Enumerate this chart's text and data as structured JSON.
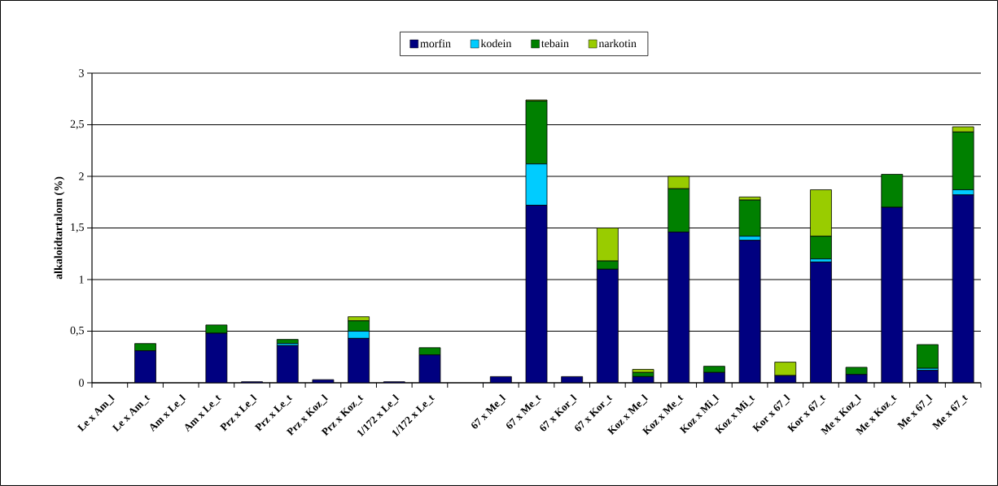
{
  "chart_data": {
    "type": "bar",
    "stacked": true,
    "ylabel": "alkaloidtartalom (%)",
    "categories": [
      "Le x Am_l",
      "Le x Am_t",
      "Am x Le_l",
      "Am x Le_t",
      "Prz x Le_l",
      "Prz x Le_t",
      "Prz x Koz_l",
      "Prz x Koz_t",
      "1/172 x Le_l",
      "1/172 x Le_t",
      null,
      "67 x Me_l",
      "67 x Me_t",
      "67 x Kor_l",
      "67 x Kor_t",
      "Koz x Me_l",
      "Koz x Me_t",
      "Koz x Mi_l",
      "Koz x Mi_t",
      "Kor x 67_l",
      "Kor x 67_t",
      "Me x Koz_l",
      "Me x Koz_t",
      "Me x 67_l",
      "Me x 67_t"
    ],
    "series": [
      {
        "name": "morfin",
        "color": "#000080",
        "values": [
          0,
          0.31,
          0,
          0.48,
          0.01,
          0.36,
          0.03,
          0.43,
          0.01,
          0.27,
          0,
          0.06,
          1.72,
          0.06,
          1.1,
          0.06,
          1.46,
          0.1,
          1.38,
          0.07,
          1.17,
          0.08,
          1.7,
          0.12,
          1.82
        ]
      },
      {
        "name": "kodein",
        "color": "#00ccff",
        "values": [
          0,
          0,
          0,
          0,
          0,
          0.02,
          0,
          0.07,
          0,
          0,
          0,
          0,
          0.4,
          0,
          0,
          0,
          0,
          0,
          0.04,
          0,
          0.03,
          0,
          0,
          0.02,
          0.05
        ]
      },
      {
        "name": "tebain",
        "color": "#008000",
        "values": [
          0,
          0.07,
          0,
          0.08,
          0,
          0.04,
          0,
          0.1,
          0,
          0.07,
          0,
          0,
          0.61,
          0,
          0.08,
          0.04,
          0.42,
          0.06,
          0.35,
          0,
          0.22,
          0.07,
          0.32,
          0.23,
          0.56
        ]
      },
      {
        "name": "narkotin",
        "color": "#99cc00",
        "values": [
          0,
          0,
          0,
          0,
          0,
          0,
          0,
          0.04,
          0,
          0,
          0,
          0,
          0.01,
          0,
          0.32,
          0.03,
          0.12,
          0,
          0.03,
          0.13,
          0.45,
          0,
          0,
          0,
          0.05
        ]
      }
    ],
    "ylim": [
      0,
      3
    ],
    "yticks": [
      0,
      {
        "value": 0.5,
        "label": "0,5"
      },
      1,
      {
        "value": 1.5,
        "label": "1,5"
      },
      2,
      {
        "value": 2.5,
        "label": "2,5"
      },
      3
    ],
    "grid": "y",
    "legend": "top"
  }
}
